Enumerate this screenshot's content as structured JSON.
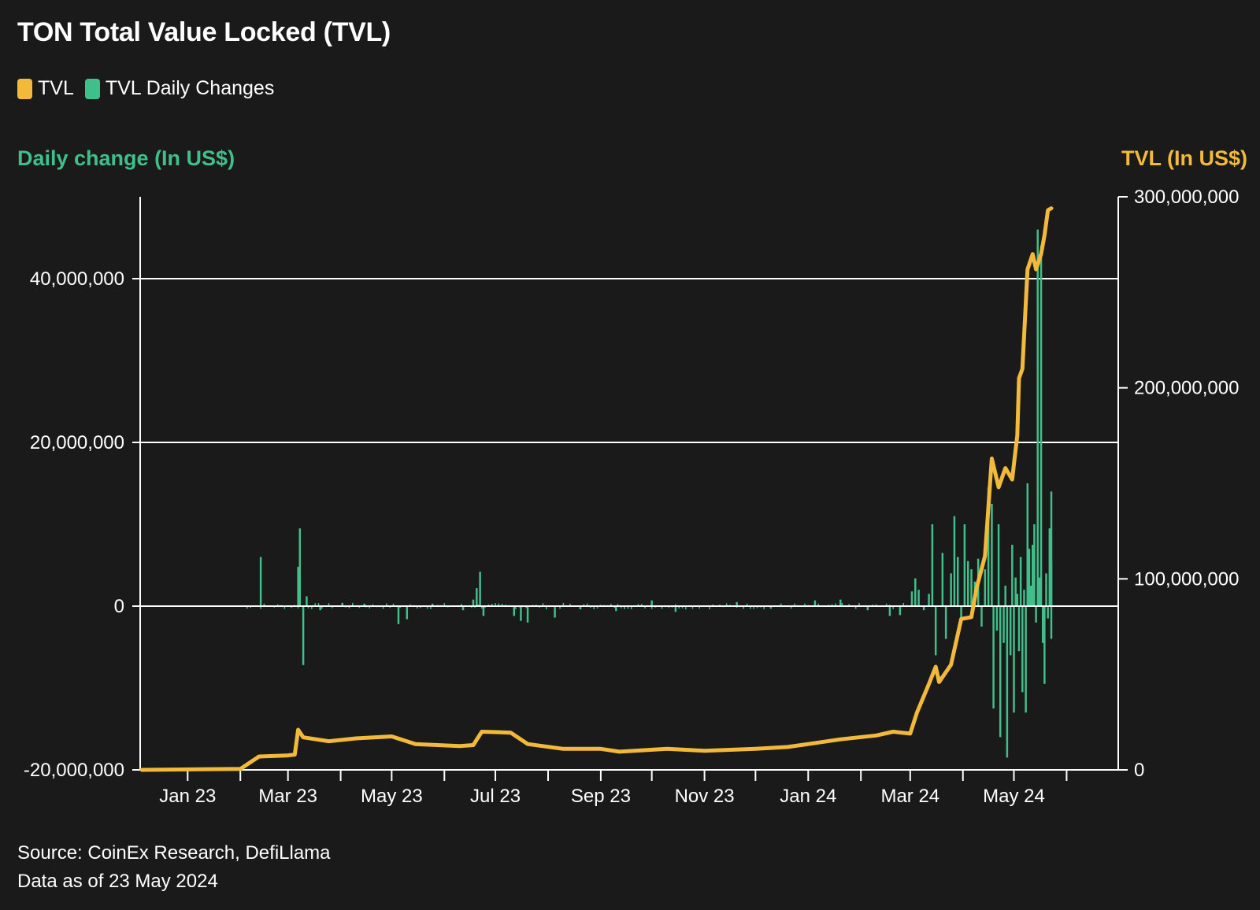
{
  "title": "TON Total Value Locked (TVL)",
  "legend": [
    {
      "label": "TVL",
      "color": "#f2b93b"
    },
    {
      "label": "TVL Daily Changes",
      "color": "#3fbf8a"
    }
  ],
  "left_axis_title": "Daily change (In US$)",
  "right_axis_title": "TVL (In US$)",
  "source": "Source: CoinEx Research, DefiLlama",
  "data_note": "Data as of 23 May 2024",
  "colors": {
    "tvl": "#f2b93b",
    "change": "#3fbf8a",
    "background": "#1a1a1a",
    "grid": "#ffffff"
  },
  "chart_data": {
    "type": "line",
    "date_range": [
      "2022-12-05",
      "2024-05-23"
    ],
    "x_tick_labels": [
      "Jan 23",
      "Mar 23",
      "May 23",
      "Jul 23",
      "Sep 23",
      "Nov 23",
      "Jan 24",
      "Mar 24",
      "May 24"
    ],
    "x_tick_dates": [
      "2023-01-01",
      "2023-03-01",
      "2023-05-01",
      "2023-07-01",
      "2023-09-01",
      "2023-11-01",
      "2024-01-01",
      "2024-03-01",
      "2024-05-01"
    ],
    "left_axis": {
      "label": "Daily change (In US$)",
      "ylim": [
        -20000000,
        50000000
      ],
      "ticks": [
        -20000000,
        0,
        20000000,
        40000000
      ],
      "tick_labels": [
        "-20,000,000",
        "0",
        "20,000,000",
        "40,000,000"
      ]
    },
    "right_axis": {
      "label": "TVL (In US$)",
      "ylim": [
        0,
        300000000
      ],
      "ticks": [
        0,
        100000000,
        200000000,
        300000000
      ],
      "tick_labels": [
        "0",
        "100,000,000",
        "200,000,000",
        "300,000,000"
      ]
    },
    "grid": "horizontal",
    "legend_position": "top-left",
    "series": [
      {
        "name": "TVL",
        "axis": "right",
        "kind": "line",
        "points": [
          [
            "2022-12-05",
            0
          ],
          [
            "2023-02-01",
            500000
          ],
          [
            "2023-02-12",
            7000000
          ],
          [
            "2023-02-28",
            7500000
          ],
          [
            "2023-03-05",
            8000000
          ],
          [
            "2023-03-07",
            21000000
          ],
          [
            "2023-03-10",
            17000000
          ],
          [
            "2023-03-25",
            15000000
          ],
          [
            "2023-04-10",
            16500000
          ],
          [
            "2023-05-01",
            17500000
          ],
          [
            "2023-05-15",
            13500000
          ],
          [
            "2023-06-10",
            12500000
          ],
          [
            "2023-06-18",
            13000000
          ],
          [
            "2023-06-23",
            20000000
          ],
          [
            "2023-07-10",
            19500000
          ],
          [
            "2023-07-20",
            13500000
          ],
          [
            "2023-08-10",
            11000000
          ],
          [
            "2023-09-01",
            11000000
          ],
          [
            "2023-09-12",
            9500000
          ],
          [
            "2023-10-10",
            11000000
          ],
          [
            "2023-11-01",
            10000000
          ],
          [
            "2023-12-01",
            11000000
          ],
          [
            "2023-12-20",
            12000000
          ],
          [
            "2024-01-01",
            13500000
          ],
          [
            "2024-01-20",
            16000000
          ],
          [
            "2024-02-10",
            18000000
          ],
          [
            "2024-02-20",
            20000000
          ],
          [
            "2024-03-01",
            19000000
          ],
          [
            "2024-03-05",
            30000000
          ],
          [
            "2024-03-12",
            45000000
          ],
          [
            "2024-03-16",
            54000000
          ],
          [
            "2024-03-18",
            46000000
          ],
          [
            "2024-03-25",
            55000000
          ],
          [
            "2024-03-31",
            79000000
          ],
          [
            "2024-04-06",
            80000000
          ],
          [
            "2024-04-09",
            95000000
          ],
          [
            "2024-04-14",
            112000000
          ],
          [
            "2024-04-18",
            163000000
          ],
          [
            "2024-04-22",
            148000000
          ],
          [
            "2024-04-26",
            158000000
          ],
          [
            "2024-04-30",
            152000000
          ],
          [
            "2024-05-01",
            160000000
          ],
          [
            "2024-05-03",
            175000000
          ],
          [
            "2024-05-04",
            205000000
          ],
          [
            "2024-05-06",
            210000000
          ],
          [
            "2024-05-09",
            262000000
          ],
          [
            "2024-05-12",
            270000000
          ],
          [
            "2024-05-14",
            262000000
          ],
          [
            "2024-05-17",
            270000000
          ],
          [
            "2024-05-19",
            280000000
          ],
          [
            "2024-05-21",
            293000000
          ],
          [
            "2024-05-23",
            294000000
          ]
        ]
      },
      {
        "name": "TVL Daily Changes",
        "axis": "left",
        "kind": "bar",
        "points": [
          [
            "2023-02-13",
            6000000
          ],
          [
            "2023-03-07",
            4800000
          ],
          [
            "2023-03-08",
            9500000
          ],
          [
            "2023-03-10",
            -7200000
          ],
          [
            "2023-03-12",
            1200000
          ],
          [
            "2023-03-20",
            -500000
          ],
          [
            "2023-04-02",
            400000
          ],
          [
            "2023-04-15",
            300000
          ],
          [
            "2023-05-05",
            -2200000
          ],
          [
            "2023-05-10",
            -1600000
          ],
          [
            "2023-05-25",
            300000
          ],
          [
            "2023-06-12",
            -500000
          ],
          [
            "2023-06-18",
            800000
          ],
          [
            "2023-06-20",
            2200000
          ],
          [
            "2023-06-22",
            4200000
          ],
          [
            "2023-06-24",
            -1200000
          ],
          [
            "2023-07-12",
            -1200000
          ],
          [
            "2023-07-16",
            -1800000
          ],
          [
            "2023-07-20",
            -2000000
          ],
          [
            "2023-08-05",
            -1400000
          ],
          [
            "2023-08-20",
            -400000
          ],
          [
            "2023-09-10",
            -600000
          ],
          [
            "2023-10-01",
            700000
          ],
          [
            "2023-10-15",
            -700000
          ],
          [
            "2023-11-20",
            500000
          ],
          [
            "2023-12-10",
            -300000
          ],
          [
            "2024-01-05",
            700000
          ],
          [
            "2024-01-20",
            800000
          ],
          [
            "2024-02-05",
            -500000
          ],
          [
            "2024-02-18",
            -1200000
          ],
          [
            "2024-02-24",
            -1100000
          ],
          [
            "2024-03-02",
            1800000
          ],
          [
            "2024-03-04",
            3400000
          ],
          [
            "2024-03-06",
            2000000
          ],
          [
            "2024-03-09",
            -500000
          ],
          [
            "2024-03-12",
            1500000
          ],
          [
            "2024-03-14",
            10000000
          ],
          [
            "2024-03-16",
            -6000000
          ],
          [
            "2024-03-20",
            6500000
          ],
          [
            "2024-03-22",
            -4000000
          ],
          [
            "2024-03-25",
            4000000
          ],
          [
            "2024-03-27",
            11000000
          ],
          [
            "2024-03-29",
            6000000
          ],
          [
            "2024-03-31",
            -1500000
          ],
          [
            "2024-04-02",
            10000000
          ],
          [
            "2024-04-04",
            5500000
          ],
          [
            "2024-04-06",
            4500000
          ],
          [
            "2024-04-08",
            3000000
          ],
          [
            "2024-04-10",
            5800000
          ],
          [
            "2024-04-12",
            -2500000
          ],
          [
            "2024-04-14",
            4500000
          ],
          [
            "2024-04-16",
            14500000
          ],
          [
            "2024-04-18",
            12500000
          ],
          [
            "2024-04-19",
            -12500000
          ],
          [
            "2024-04-21",
            -3000000
          ],
          [
            "2024-04-22",
            10000000
          ],
          [
            "2024-04-23",
            -16000000
          ],
          [
            "2024-04-25",
            -4500000
          ],
          [
            "2024-04-26",
            2500000
          ],
          [
            "2024-04-27",
            -18500000
          ],
          [
            "2024-04-29",
            -6000000
          ],
          [
            "2024-04-30",
            7500000
          ],
          [
            "2024-05-01",
            -13000000
          ],
          [
            "2024-05-02",
            3500000
          ],
          [
            "2024-05-03",
            1500000
          ],
          [
            "2024-05-04",
            -5500000
          ],
          [
            "2024-05-05",
            6000000
          ],
          [
            "2024-05-06",
            -10500000
          ],
          [
            "2024-05-07",
            2000000
          ],
          [
            "2024-05-08",
            -13000000
          ],
          [
            "2024-05-09",
            15000000
          ],
          [
            "2024-05-10",
            7000000
          ],
          [
            "2024-05-11",
            2500000
          ],
          [
            "2024-05-12",
            7500000
          ],
          [
            "2024-05-13",
            10000000
          ],
          [
            "2024-05-14",
            -2000000
          ],
          [
            "2024-05-15",
            46000000
          ],
          [
            "2024-05-16",
            3500000
          ],
          [
            "2024-05-17",
            44000000
          ],
          [
            "2024-05-18",
            -4500000
          ],
          [
            "2024-05-19",
            -9500000
          ],
          [
            "2024-05-20",
            4000000
          ],
          [
            "2024-05-21",
            -1500000
          ],
          [
            "2024-05-22",
            9500000
          ],
          [
            "2024-05-23",
            14000000
          ],
          [
            "2024-05-23",
            -4000000
          ],
          [
            "2024-05-23",
            5500000
          ]
        ]
      }
    ]
  }
}
